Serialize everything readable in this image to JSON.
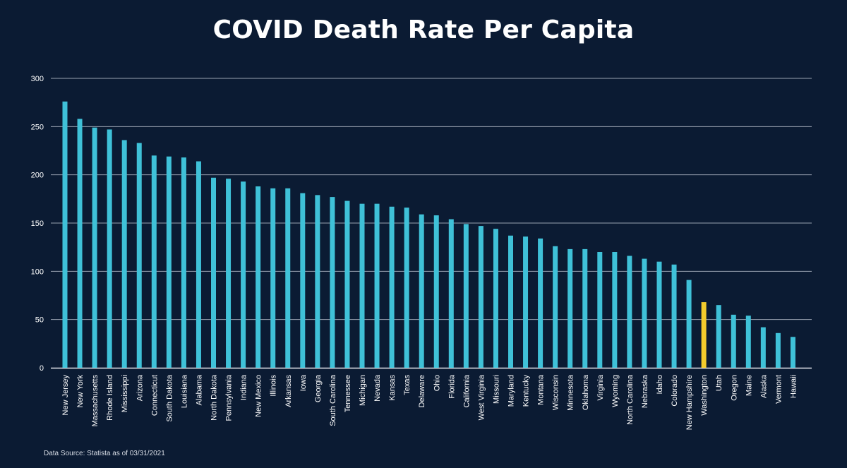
{
  "title": "COVID Death Rate Per Capita",
  "source": "Data Source: Statista as of 03/31/2021",
  "colors": {
    "background": "#0b1b33",
    "bar": "#3fc1d8",
    "highlight": "#f4cc2c",
    "grid": "#9aa3b2",
    "text": "#ffffff"
  },
  "chart_data": {
    "type": "bar",
    "title": "COVID Death Rate Per Capita",
    "xlabel": "",
    "ylabel": "",
    "ylim": [
      0,
      300
    ],
    "yticks": [
      0,
      50,
      100,
      150,
      200,
      250,
      300
    ],
    "grid": true,
    "highlight_category": "Washington",
    "categories": [
      "New Jersey",
      "New York",
      "Massachusetts",
      "Rhode Island",
      "Mississippi",
      "Arizona",
      "Connecticut",
      "South Dakota",
      "Louisiana",
      "Alabama",
      "North Dakota",
      "Pennsylvania",
      "Indiana",
      "New Mexico",
      "Illinois",
      "Arkansas",
      "Iowa",
      "Georgia",
      "South Carolina",
      "Tennessee",
      "Michigan",
      "Nevada",
      "Kansas",
      "Texas",
      "Delaware",
      "Ohio",
      "Florida",
      "California",
      "West Virginia",
      "Missouri",
      "Maryland",
      "Kentucky",
      "Montana",
      "Wisconsin",
      "Minnesota",
      "Oklahoma",
      "Virginia",
      "Wyoming",
      "North Carolina",
      "Nebraska",
      "Idaho",
      "Colorado",
      "New Hampshire",
      "Washington",
      "Utah",
      "Oregon",
      "Maine",
      "Alaska",
      "Vermont",
      "Hawaii"
    ],
    "values": [
      276,
      258,
      249,
      247,
      236,
      233,
      220,
      219,
      218,
      214,
      197,
      196,
      193,
      188,
      186,
      186,
      181,
      179,
      177,
      173,
      170,
      170,
      167,
      166,
      159,
      158,
      154,
      149,
      147,
      144,
      137,
      136,
      134,
      126,
      123,
      123,
      120,
      120,
      116,
      113,
      110,
      107,
      91,
      68,
      65,
      55,
      54,
      42,
      36,
      32
    ]
  }
}
